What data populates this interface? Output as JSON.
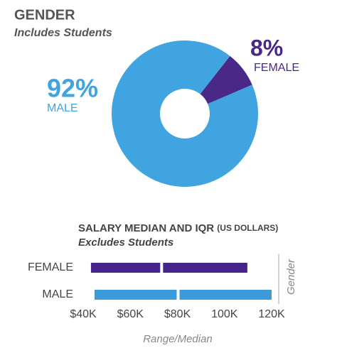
{
  "chart_data": [
    {
      "type": "donut",
      "title": "GENDER",
      "subtitle": "Includes Students",
      "categories": [
        "MALE",
        "FEMALE"
      ],
      "values": [
        92,
        8
      ],
      "value_labels": [
        "92%",
        "8%"
      ],
      "colors": [
        "#40a4e0",
        "#4a2888"
      ]
    },
    {
      "type": "range",
      "title": "SALARY MEDIAN AND IQR",
      "title_unit": "(US DOLLARS)",
      "subtitle": "Excludes Students",
      "categories": [
        "FEMALE",
        "MALE"
      ],
      "low": [
        43300,
        44800
      ],
      "median": [
        73300,
        80300
      ],
      "high": [
        109700,
        120000
      ],
      "colors": [
        "#46258a",
        "#3b9ad9"
      ],
      "xlim": [
        40000,
        120000
      ],
      "xticks": [
        {
          "value": 40000,
          "label": "$40K"
        },
        {
          "value": 60000,
          "label": "$60K"
        },
        {
          "value": 80000,
          "label": "$80K"
        },
        {
          "value": 100000,
          "label": "100K"
        },
        {
          "value": 120000,
          "label": "120K"
        }
      ],
      "xlabel": "Range/Median",
      "ylabel": "Gender"
    }
  ]
}
